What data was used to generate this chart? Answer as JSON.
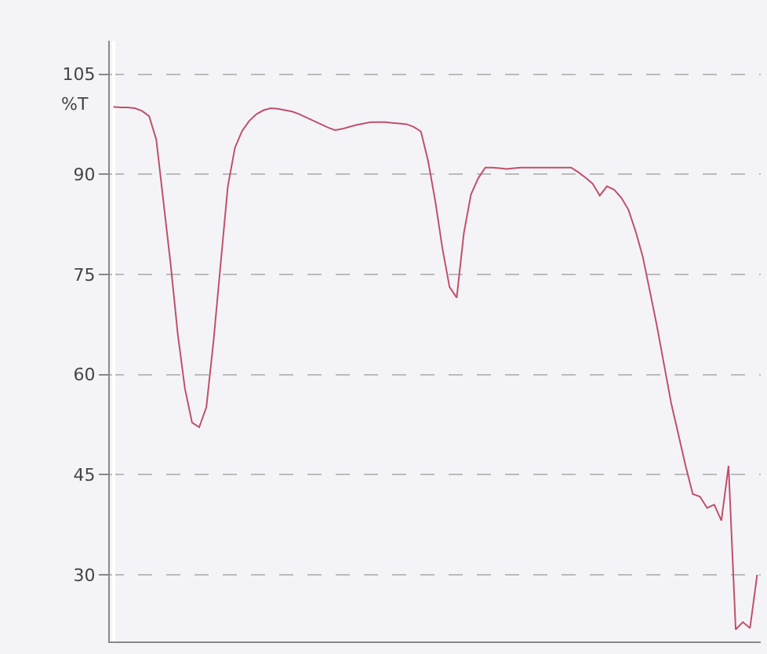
{
  "chart_data": {
    "type": "line",
    "ylabel": "%T",
    "categories": [
      null,
      null,
      null,
      null,
      null,
      null,
      null,
      null,
      null,
      null,
      null,
      null,
      null,
      null,
      null,
      null,
      null,
      null,
      null,
      null,
      null,
      null,
      null,
      null,
      null,
      null,
      null,
      null,
      null,
      null,
      null,
      null,
      null,
      null,
      null,
      null,
      null,
      null,
      null,
      null,
      null,
      null,
      null,
      null,
      null,
      null,
      null,
      null,
      null,
      null,
      null,
      null,
      null,
      null,
      null,
      null,
      null,
      null,
      null,
      null,
      null,
      null,
      null,
      null,
      null,
      null,
      null,
      null,
      null,
      null,
      null,
      null,
      null,
      null,
      null,
      null,
      null,
      null,
      null,
      null,
      null,
      null,
      null,
      null,
      null,
      null,
      null,
      null,
      null,
      null,
      null
    ],
    "series": [
      {
        "color": "#c0506a",
        "values": [
          100.1,
          100,
          100,
          99.9,
          99.5,
          98.7,
          95.2,
          85.9,
          76.6,
          66.1,
          57.9,
          52.8,
          52.1,
          55.1,
          65,
          76.6,
          88.2,
          94,
          96.5,
          98,
          99,
          99.6,
          99.9,
          99.8,
          99.6,
          99.4,
          99,
          98.5,
          98,
          97.5,
          97,
          96.6,
          96.8,
          97.1,
          97.4,
          97.6,
          97.8,
          97.8,
          97.8,
          97.7,
          97.6,
          97.5,
          97.1,
          96.4,
          92,
          86,
          78.9,
          73.1,
          71.5,
          81.2,
          87,
          89.4,
          91,
          91,
          90.9,
          90.8,
          90.9,
          91,
          91,
          91,
          91,
          91,
          91,
          91,
          91,
          90.3,
          89.5,
          88.6,
          86.8,
          88.2,
          87.7,
          86.5,
          84.7,
          81.5,
          77.7,
          72.5,
          67.2,
          61.4,
          55.6,
          51,
          46.3,
          42.1,
          41.7,
          40,
          40.5,
          38.1,
          46.3,
          21.8,
          22.9,
          22,
          30
        ]
      }
    ],
    "ylim": [
      20,
      110
    ],
    "yticks": [
      30,
      45,
      60,
      75,
      90,
      105
    ],
    "grid": "y",
    "line_style": "solid",
    "marker": "none"
  }
}
